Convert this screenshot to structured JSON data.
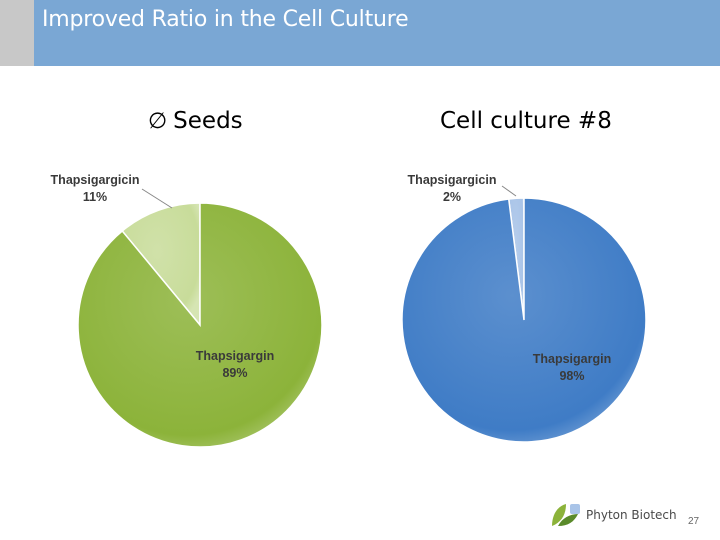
{
  "slide": {
    "title": "Improved Ratio in the Cell Culture",
    "page_number": "27",
    "logo_text": "Phyton Biotech"
  },
  "colors": {
    "title_bar": "#7aa7d4",
    "title_accent": "#c8c8c8",
    "green_main": "#8cb33a",
    "green_light": "#c8dc9a",
    "blue_main": "#3f7cc6",
    "blue_light": "#a9c4e8"
  },
  "chart_data": [
    {
      "type": "pie",
      "title_symbol": "∅",
      "title": "Seeds",
      "slices": [
        {
          "label": "Thapsigargicin",
          "value": 11,
          "pct_label": "11%"
        },
        {
          "label": "Thapsigargin",
          "value": 89,
          "pct_label": "89%"
        }
      ],
      "colors": [
        "#c8dc9a",
        "#8cb33a"
      ]
    },
    {
      "type": "pie",
      "title": "Cell culture #8",
      "slices": [
        {
          "label": "Thapsigargicin",
          "value": 2,
          "pct_label": "2%"
        },
        {
          "label": "Thapsigargin",
          "value": 98,
          "pct_label": "98%"
        }
      ],
      "colors": [
        "#a9c4e8",
        "#3f7cc6"
      ]
    }
  ]
}
